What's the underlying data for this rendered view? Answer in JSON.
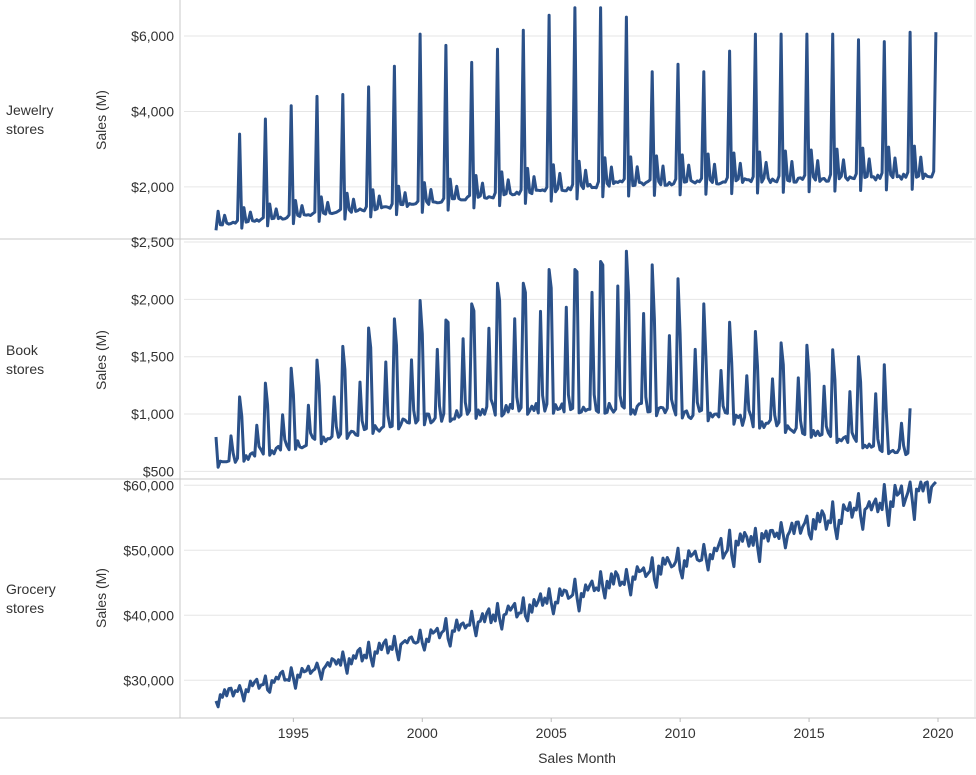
{
  "colors": {
    "line": "#2b5189",
    "grid": "#e6e6e6",
    "divider": "#c8c8c8",
    "axis": "#bdbdbd"
  },
  "x_axis": {
    "title": "Sales Month",
    "ticks": [
      "1995",
      "2000",
      "2005",
      "2010",
      "2015",
      "2020"
    ]
  },
  "chart_data": [
    {
      "type": "line",
      "row_label": [
        "Jewelry",
        "stores"
      ],
      "ylabel": "Sales (M)",
      "ylim": [
        700,
        6900
      ],
      "yticks": [
        2000,
        4000,
        6000
      ],
      "ytick_labels": [
        "$2,000",
        "$4,000",
        "$6,000"
      ],
      "series": [
        {
          "x_start": "1992-01",
          "frequency": "monthly",
          "dec_peaks": [
            3400,
            3800,
            4150,
            4400,
            4450,
            4650,
            5200,
            6050,
            5750,
            5300,
            5650,
            6150,
            6550,
            6750,
            6750,
            6500,
            5050,
            5250,
            5050,
            5600,
            6050,
            6050,
            6050,
            6050,
            5900,
            5850,
            6100
          ],
          "base_start": 1000,
          "base_end": 2300,
          "base_peak_year": 2007,
          "feb_bump": 1.35,
          "may_bump": 1.22
        }
      ]
    },
    {
      "type": "line",
      "row_label": [
        "Book",
        "stores"
      ],
      "ylabel": "Sales (M)",
      "ylim": [
        460,
        2500
      ],
      "yticks": [
        500,
        1000,
        1500,
        2000,
        2500
      ],
      "ytick_labels": [
        "$500",
        "$1,000",
        "$1,500",
        "$2,000",
        "$2,500"
      ],
      "series": [
        {
          "x_start": "1992-01",
          "frequency": "monthly",
          "dec_peaks": [
            1150,
            1270,
            1400,
            1470,
            1590,
            1750,
            1830,
            1990,
            1820,
            1960,
            2140,
            2140,
            2260,
            2260,
            2330,
            2420,
            2300,
            2180,
            1960,
            1800,
            1720,
            1620,
            1600,
            1560,
            1500,
            1430,
            1050
          ],
          "jan_peaks": [
            880,
            980,
            1080,
            1170,
            1250,
            1390,
            1580,
            1600,
            1700,
            1800,
            1900,
            1990,
            2060,
            2100,
            2240,
            2300,
            2040,
            1830,
            1700,
            1500,
            1450,
            1420,
            1430,
            1350,
            1300,
            1280,
            1000
          ],
          "base_start": 560,
          "base_peak": 1050,
          "base_end": 650
        }
      ]
    },
    {
      "type": "line",
      "row_label": [
        "Grocery",
        "stores"
      ],
      "ylabel": "Sales (M)",
      "ylim": [
        24500,
        60500
      ],
      "yticks": [
        30000,
        40000,
        50000,
        60000
      ],
      "ytick_labels": [
        "$30,000",
        "$40,000",
        "$50,000",
        "$60,000"
      ],
      "series": [
        {
          "x_start": "1992-01",
          "frequency": "monthly",
          "start": 27200,
          "end": 59800,
          "seasonal_amp": 0.035
        }
      ]
    }
  ]
}
